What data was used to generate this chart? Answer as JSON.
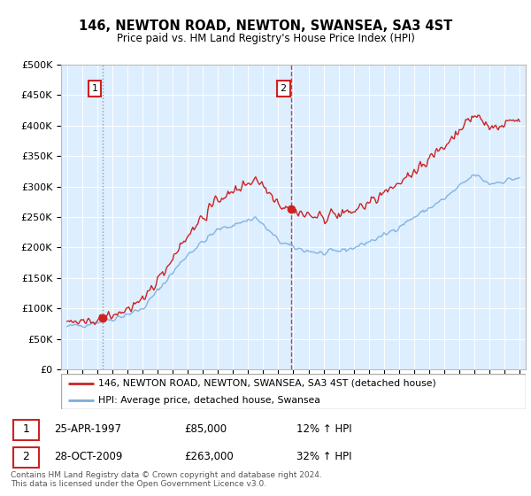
{
  "title": "146, NEWTON ROAD, NEWTON, SWANSEA, SA3 4ST",
  "subtitle": "Price paid vs. HM Land Registry's House Price Index (HPI)",
  "property_label": "146, NEWTON ROAD, NEWTON, SWANSEA, SA3 4ST (detached house)",
  "hpi_label": "HPI: Average price, detached house, Swansea",
  "sale1_date": "25-APR-1997",
  "sale1_price": 85000,
  "sale1_pct": "12% ↑ HPI",
  "sale2_date": "28-OCT-2009",
  "sale2_price": 263000,
  "sale2_pct": "32% ↑ HPI",
  "property_color": "#cc2222",
  "hpi_color": "#7aaddd",
  "dashed_color1": "#999999",
  "dashed_color2": "#cc2222",
  "bg_color": "#ddeeff",
  "grid_color": "#ffffff",
  "footer": "Contains HM Land Registry data © Crown copyright and database right 2024.\nThis data is licensed under the Open Government Licence v3.0.",
  "ylim": [
    0,
    500000
  ],
  "yticks": [
    0,
    50000,
    100000,
    150000,
    200000,
    250000,
    300000,
    350000,
    400000,
    450000,
    500000
  ],
  "sale1_x": 1997.3,
  "sale2_x": 2009.83,
  "figsize": [
    6.0,
    5.6
  ],
  "dpi": 100
}
